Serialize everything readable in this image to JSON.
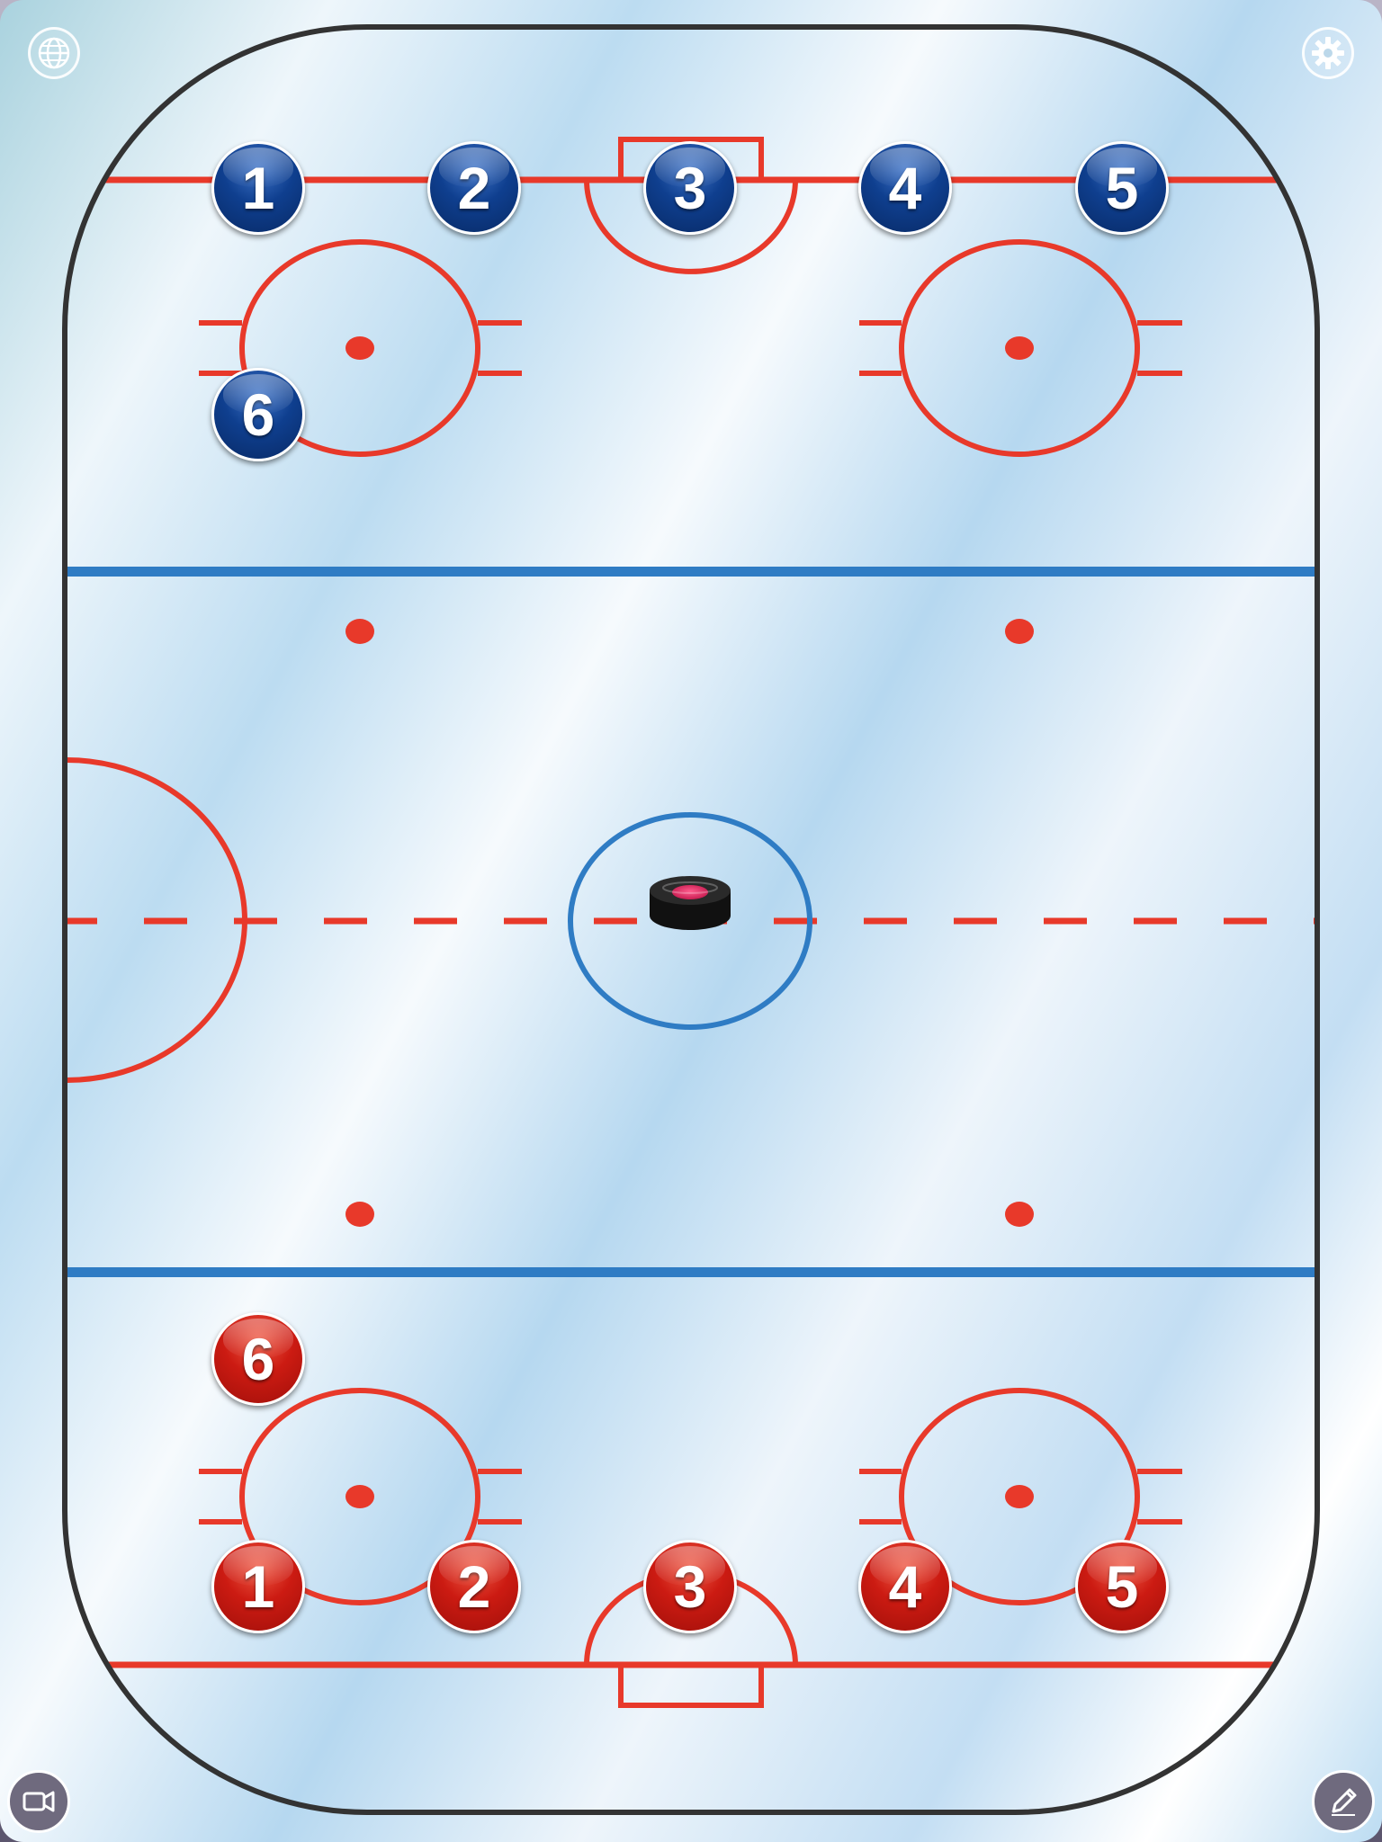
{
  "colors": {
    "boards": "#333333",
    "red_line": "#e8392a",
    "blue_line": "#2f7cc4",
    "team_blue": "#0f3f8f",
    "team_red": "#cc1b12",
    "puck": "#111111",
    "puck_top": "#e0245e"
  },
  "toolbar": {
    "top_left_icon": "globe-icon",
    "top_right_icon": "gear-icon",
    "bottom_left_icon": "video-camera-icon",
    "bottom_right_icon": "pencil-icon"
  },
  "puck": {
    "icon": "hockey-puck-icon"
  },
  "teams": {
    "blue": {
      "color": "#0f3f8f",
      "players": [
        {
          "number": "1"
        },
        {
          "number": "2"
        },
        {
          "number": "3"
        },
        {
          "number": "4"
        },
        {
          "number": "5"
        },
        {
          "number": "6"
        }
      ]
    },
    "red": {
      "color": "#cc1b12",
      "players": [
        {
          "number": "6"
        },
        {
          "number": "1"
        },
        {
          "number": "2"
        },
        {
          "number": "3"
        },
        {
          "number": "4"
        },
        {
          "number": "5"
        }
      ]
    }
  }
}
